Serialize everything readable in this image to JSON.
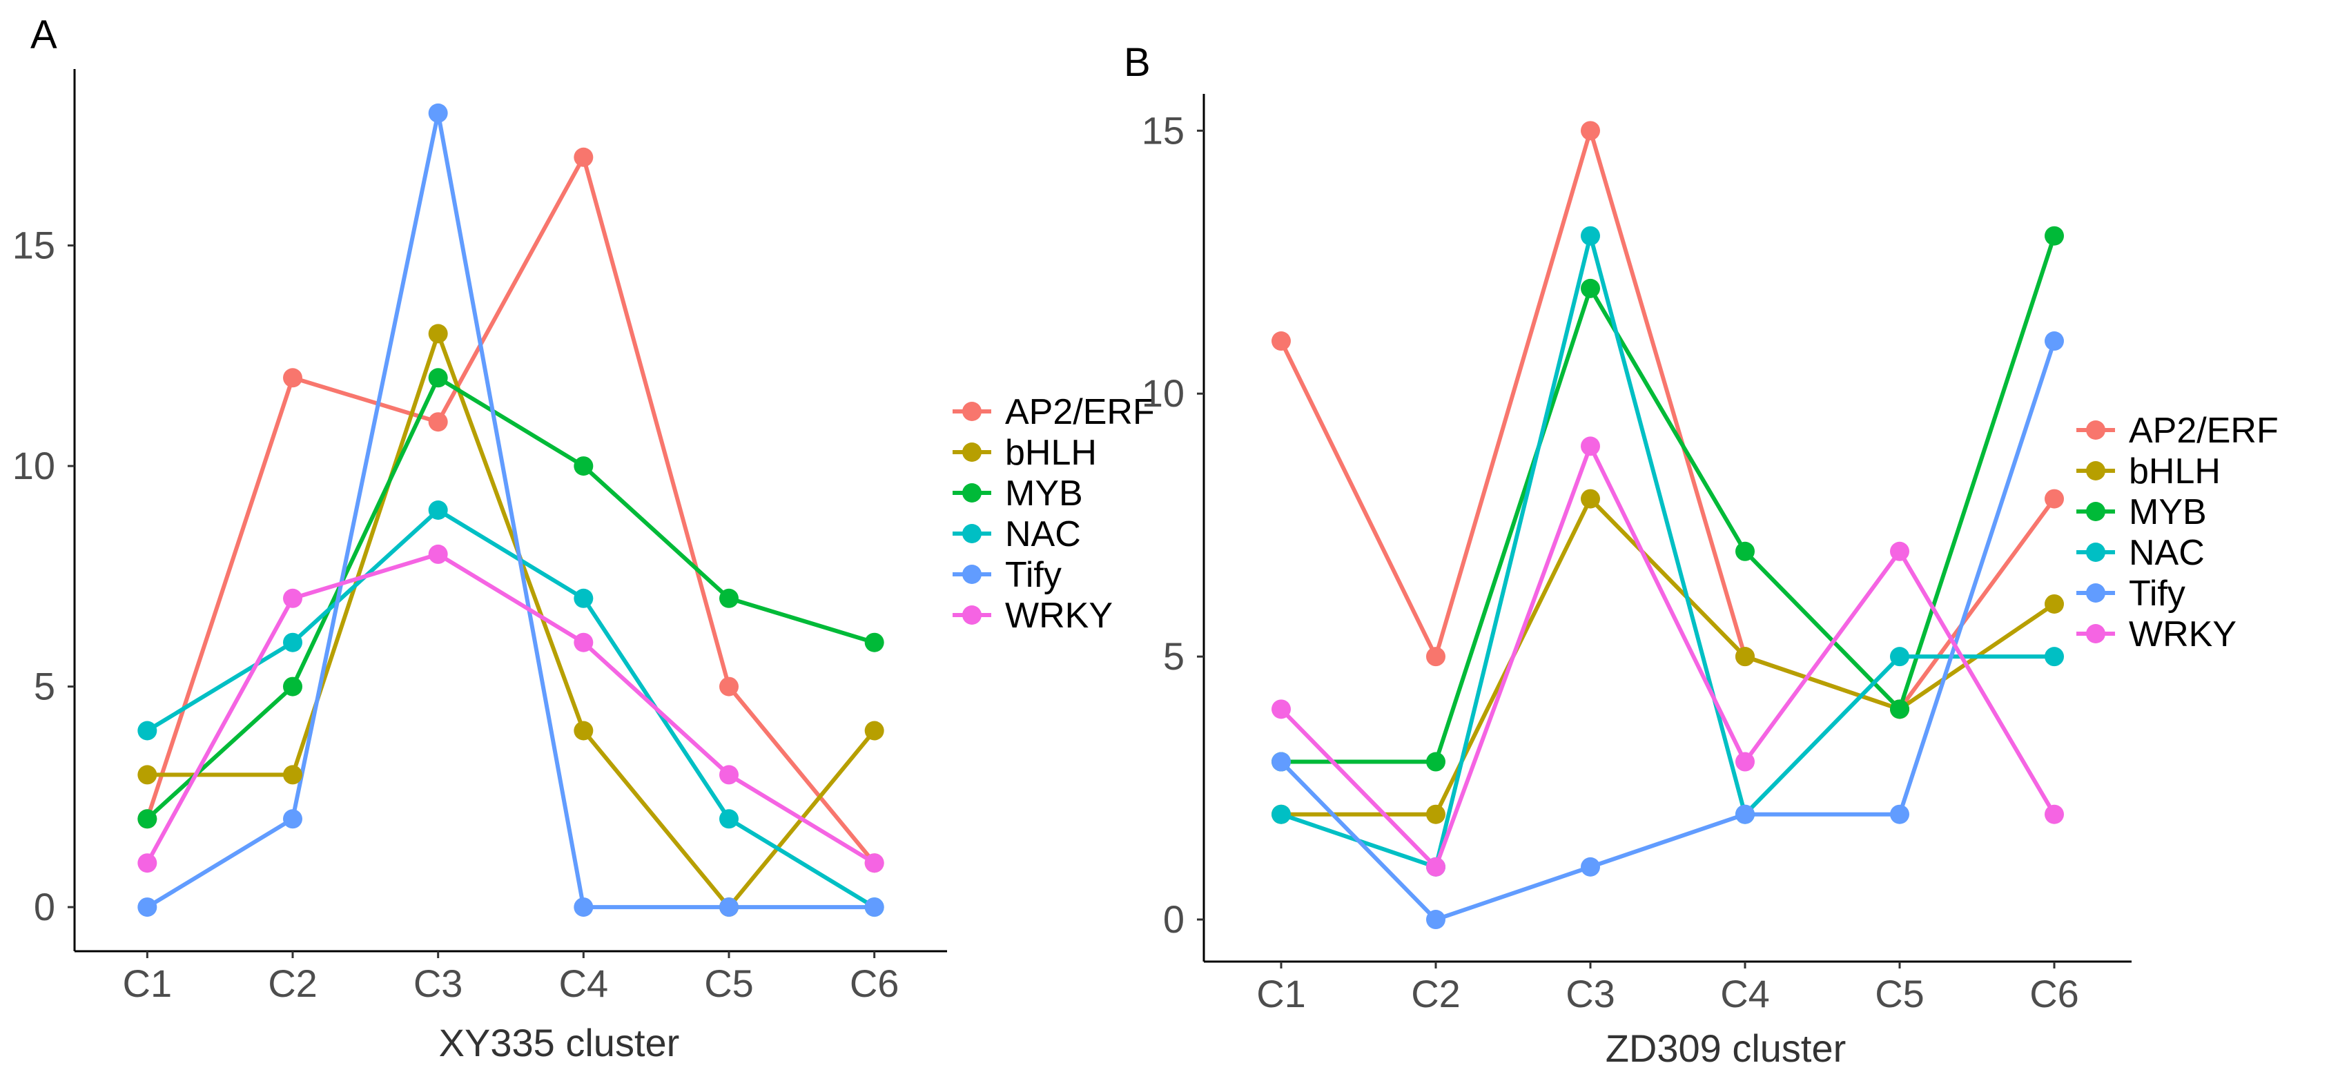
{
  "panels": [
    {
      "letter": "A",
      "chart_data": {
        "type": "line",
        "title": "",
        "xlabel": "XY335 cluster",
        "ylabel": "",
        "categories": [
          "C1",
          "C2",
          "C3",
          "C4",
          "C5",
          "C6"
        ],
        "ylim": [
          -1,
          19
        ],
        "yticks": [
          0,
          5,
          10,
          15
        ],
        "ytick_labels": [
          "0",
          "5",
          "10",
          "15"
        ],
        "grid": false,
        "legend_position": "right",
        "series": [
          {
            "name": "AP2/ERF",
            "color": "#F8766D",
            "values": [
              2,
              12,
              11,
              17,
              5,
              1
            ]
          },
          {
            "name": "bHLH",
            "color": "#B79F00",
            "values": [
              3,
              3,
              13,
              4,
              0,
              4
            ]
          },
          {
            "name": "MYB",
            "color": "#00BA38",
            "values": [
              2,
              5,
              12,
              10,
              7,
              6
            ]
          },
          {
            "name": "NAC",
            "color": "#00BFC4",
            "values": [
              4,
              6,
              9,
              7,
              2,
              0
            ]
          },
          {
            "name": "Tify",
            "color": "#619CFF",
            "values": [
              0,
              2,
              18,
              0,
              0,
              0
            ]
          },
          {
            "name": "WRKY",
            "color": "#F564E3",
            "values": [
              1,
              7,
              8,
              6,
              3,
              1
            ]
          }
        ]
      }
    },
    {
      "letter": "B",
      "chart_data": {
        "type": "line",
        "title": "",
        "xlabel": "ZD309 cluster",
        "ylabel": "",
        "categories": [
          "C1",
          "C2",
          "C3",
          "C4",
          "C5",
          "C6"
        ],
        "ylim": [
          -0.8,
          15.7
        ],
        "yticks": [
          0,
          5,
          10,
          15
        ],
        "ytick_labels": [
          "0",
          "5",
          "10",
          "15"
        ],
        "grid": false,
        "legend_position": "right",
        "series": [
          {
            "name": "AP2/ERF",
            "color": "#F8766D",
            "values": [
              11,
              5,
              15,
              5,
              4,
              8
            ]
          },
          {
            "name": "bHLH",
            "color": "#B79F00",
            "values": [
              2,
              2,
              8,
              5,
              4,
              6
            ]
          },
          {
            "name": "MYB",
            "color": "#00BA38",
            "values": [
              3,
              3,
              12,
              7,
              4,
              13
            ]
          },
          {
            "name": "NAC",
            "color": "#00BFC4",
            "values": [
              2,
              1,
              13,
              2,
              5,
              5
            ]
          },
          {
            "name": "Tify",
            "color": "#619CFF",
            "values": [
              3,
              0,
              1,
              2,
              2,
              11
            ]
          },
          {
            "name": "WRKY",
            "color": "#F564E3",
            "values": [
              4,
              1,
              9,
              3,
              7,
              2
            ]
          }
        ]
      }
    }
  ]
}
